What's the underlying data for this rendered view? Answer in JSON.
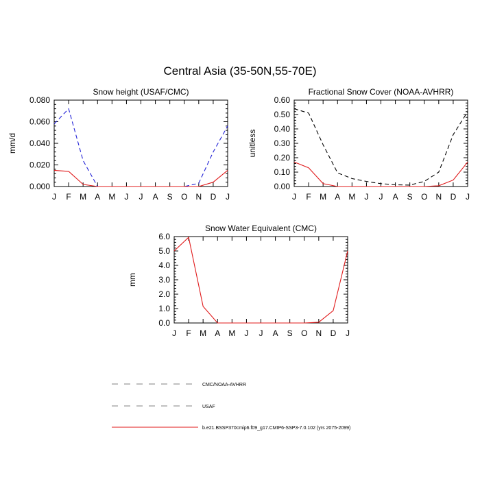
{
  "title": "Central Asia (35-50N,55-70E)",
  "colors": {
    "obs_cmc_noaa": "#000000",
    "obs_usaf": "#1f1fd6",
    "model": "#e0191a"
  },
  "legend": {
    "items": [
      {
        "label": "CMC/NOAA-AVHRR",
        "color": "#808080",
        "dash": "dashed"
      },
      {
        "label": "USAF",
        "color": "#808080",
        "dash": "dashed"
      },
      {
        "label": "b.e21.BSSP370cmip6.f09_g17.CMIP6-SSP3-7.0.102 (yrs 2075-2099)",
        "color": "#e0191a",
        "dash": "solid"
      }
    ]
  },
  "chart_data": [
    {
      "type": "line",
      "title": "Snow height (USAF/CMC)",
      "xlabel": "",
      "ylabel": "mm/d",
      "x": [
        "J",
        "F",
        "M",
        "A",
        "M",
        "J",
        "J",
        "A",
        "S",
        "O",
        "N",
        "D",
        "J"
      ],
      "ylim": [
        0,
        0.08
      ],
      "yticks": [
        "0.000",
        "0.020",
        "0.040",
        "0.060",
        "0.080"
      ],
      "series": [
        {
          "name": "USAF",
          "color": "#1f1fd6",
          "dash": "dashed",
          "values": [
            0.058,
            0.072,
            0.024,
            0.0,
            0.0,
            0.0,
            0.0,
            0.0,
            0.0,
            0.0,
            0.003,
            0.032,
            0.056
          ]
        },
        {
          "name": "b.e21.BSSP370cmip6.f09_g17.CMIP6-SSP3-7.0.102 (yrs 2075-2099)",
          "color": "#e0191a",
          "dash": "solid",
          "values": [
            0.015,
            0.014,
            0.002,
            0.0,
            0.0,
            0.0,
            0.0,
            0.0,
            0.0,
            0.0,
            0.0,
            0.004,
            0.015
          ]
        }
      ]
    },
    {
      "type": "line",
      "title": "Fractional Snow Cover (NOAA-AVHRR)",
      "xlabel": "",
      "ylabel": "unitless",
      "x": [
        "J",
        "F",
        "M",
        "A",
        "M",
        "J",
        "J",
        "A",
        "S",
        "O",
        "N",
        "D",
        "J"
      ],
      "ylim": [
        0,
        0.6
      ],
      "yticks": [
        "0.00",
        "0.10",
        "0.20",
        "0.30",
        "0.40",
        "0.50",
        "0.60"
      ],
      "series": [
        {
          "name": "CMC/NOAA-AVHRR",
          "color": "#000000",
          "dash": "dashed",
          "values": [
            0.54,
            0.51,
            0.29,
            0.095,
            0.055,
            0.035,
            0.02,
            0.012,
            0.01,
            0.035,
            0.1,
            0.36,
            0.52
          ]
        },
        {
          "name": "b.e21.BSSP370cmip6.f09_g17.CMIP6-SSP3-7.0.102 (yrs 2075-2099)",
          "color": "#e0191a",
          "dash": "solid",
          "values": [
            0.17,
            0.13,
            0.02,
            0.0,
            0.0,
            0.0,
            0.0,
            0.0,
            0.0,
            0.0,
            0.005,
            0.045,
            0.17
          ]
        }
      ]
    },
    {
      "type": "line",
      "title": "Snow Water Equivalent (CMC)",
      "xlabel": "",
      "ylabel": "mm",
      "x": [
        "J",
        "F",
        "M",
        "A",
        "M",
        "J",
        "J",
        "A",
        "S",
        "O",
        "N",
        "D",
        "J"
      ],
      "ylim": [
        0,
        6
      ],
      "yticks": [
        "0.0",
        "1.0",
        "2.0",
        "3.0",
        "4.0",
        "5.0",
        "6.0"
      ],
      "series": [
        {
          "name": "CMC/NOAA-AVHRR",
          "color": "#000000",
          "dash": "dashed",
          "values": [
            0,
            0,
            0,
            0,
            0,
            0,
            0,
            0,
            0,
            0,
            0,
            0,
            0
          ]
        },
        {
          "name": "b.e21.BSSP370cmip6.f09_g17.CMIP6-SSP3-7.0.102 (yrs 2075-2099)",
          "color": "#e0191a",
          "dash": "solid",
          "values": [
            5.0,
            5.95,
            1.15,
            0.0,
            0.0,
            0.0,
            0.0,
            0.0,
            0.0,
            0.0,
            0.05,
            0.85,
            5.0
          ]
        }
      ]
    }
  ]
}
